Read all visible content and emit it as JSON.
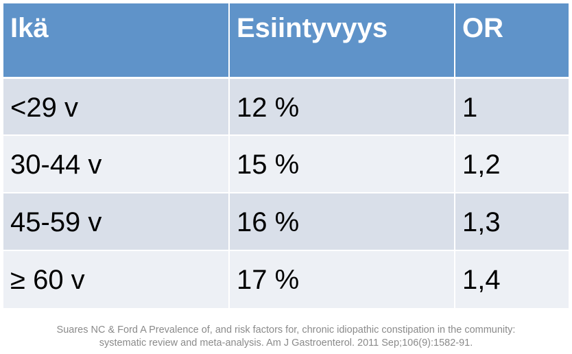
{
  "table": {
    "headers": [
      "Ikä",
      "Esiintyvyys",
      "OR"
    ],
    "rows": [
      [
        "<29 v",
        "12 %",
        "1"
      ],
      [
        "30-44 v",
        "15 %",
        "1,2"
      ],
      [
        "45-59 v",
        "16 %",
        "1,3"
      ],
      [
        "≥ 60 v",
        "17 %",
        "1,4"
      ]
    ]
  },
  "citation": {
    "line1": "Suares NC & Ford A Prevalence of, and risk factors for, chronic idiopathic constipation in the community:",
    "line2": "systematic review and meta-analysis. Am J Gastroenterol. 2011 Sep;106(9):1582-91."
  },
  "colors": {
    "header_bg": "#5f93c9",
    "row_odd_bg": "#d9dfe9",
    "row_even_bg": "#edf0f5",
    "citation_text": "#8a8a8a"
  }
}
